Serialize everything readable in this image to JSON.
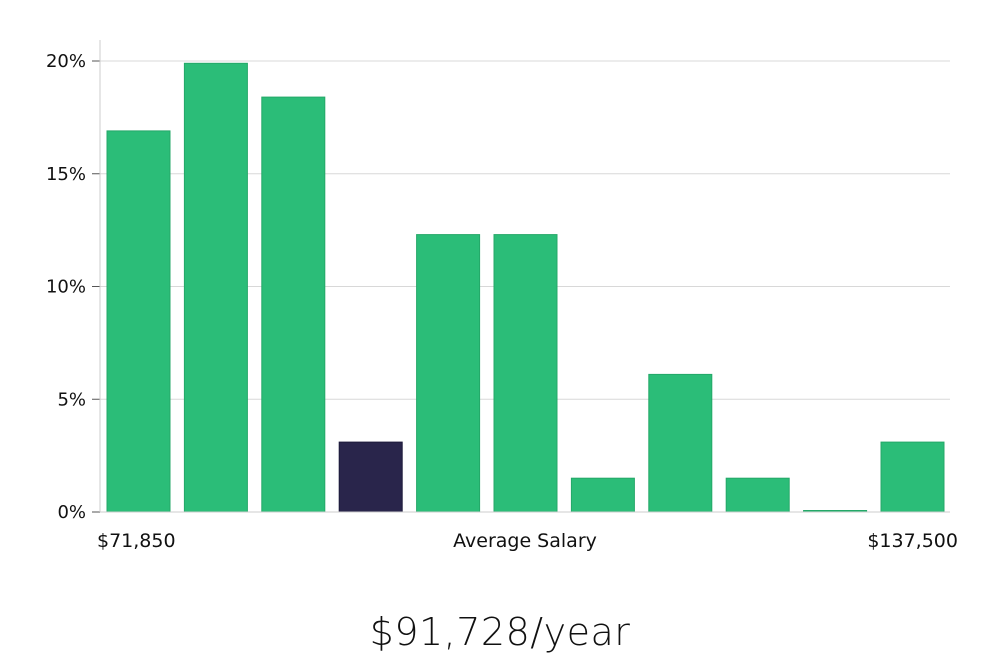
{
  "chart_data": {
    "type": "bar",
    "title": "",
    "xlabel": "Average Salary",
    "ylabel": "",
    "x_min_label": "$71,850",
    "x_max_label": "$137,500",
    "ylim": [
      0,
      21
    ],
    "yticks": [
      0,
      5,
      10,
      15,
      20
    ],
    "ytick_labels": [
      "0%",
      "5%",
      "10%",
      "15%",
      "20%"
    ],
    "grid": true,
    "values": [
      16.9,
      19.9,
      18.4,
      3.1,
      12.3,
      12.3,
      1.5,
      6.1,
      1.5,
      0.0,
      3.1
    ],
    "highlight_index": 3,
    "colors": {
      "bar": "#2bbd78",
      "highlight": "#29254b",
      "grid": "#d8d8d8",
      "axis": "#cccccc"
    }
  },
  "salary": {
    "display": "$91,728/year"
  }
}
